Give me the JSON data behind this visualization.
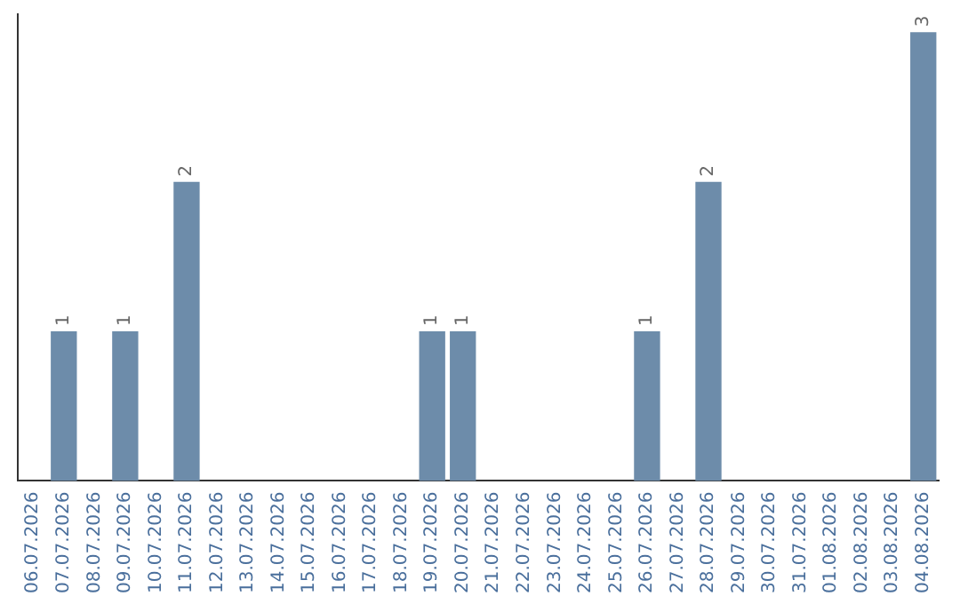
{
  "chart_data": {
    "type": "bar",
    "categories": [
      "06.07.2026",
      "07.07.2026",
      "08.07.2026",
      "09.07.2026",
      "10.07.2026",
      "11.07.2026",
      "12.07.2026",
      "13.07.2026",
      "14.07.2026",
      "15.07.2026",
      "16.07.2026",
      "17.07.2026",
      "18.07.2026",
      "19.07.2026",
      "20.07.2026",
      "21.07.2026",
      "22.07.2026",
      "23.07.2026",
      "24.07.2026",
      "25.07.2026",
      "26.07.2026",
      "27.07.2026",
      "28.07.2026",
      "29.07.2026",
      "30.07.2026",
      "31.07.2026",
      "01.08.2026",
      "02.08.2026",
      "03.08.2026",
      "04.08.2026"
    ],
    "values": [
      0,
      1,
      0,
      1,
      0,
      2,
      0,
      0,
      0,
      0,
      0,
      0,
      0,
      1,
      1,
      0,
      0,
      0,
      0,
      0,
      1,
      0,
      2,
      0,
      0,
      0,
      0,
      0,
      0,
      3
    ],
    "value_labels": [
      null,
      "1",
      null,
      "1",
      null,
      "2",
      null,
      null,
      null,
      null,
      null,
      null,
      null,
      "1",
      "1",
      null,
      null,
      null,
      null,
      null,
      "1",
      null,
      "2",
      null,
      null,
      null,
      null,
      null,
      null,
      "3"
    ],
    "color": "#6d8caa",
    "grid": false,
    "legend": false
  }
}
